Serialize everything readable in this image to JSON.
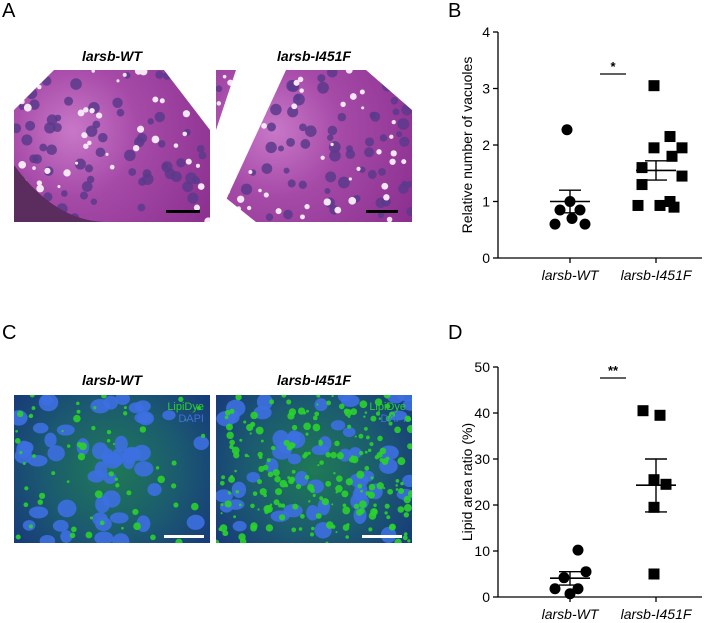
{
  "panels": {
    "a": {
      "letter": "A",
      "left_title": "larsb-WT",
      "right_title": "larsb-I451F"
    },
    "b": {
      "letter": "B"
    },
    "c": {
      "letter": "C",
      "left_title": "larsb-WT",
      "right_title": "larsb-I451F",
      "stain1": "LipiDye",
      "stain2": "DAPI"
    },
    "d": {
      "letter": "D"
    }
  },
  "colors": {
    "he_stain": "#a64aa8",
    "lipid_green": "#2bd12b",
    "dapi_blue": "#3d6fe0",
    "scalebar": "#000000",
    "scalebar_fluor": "#ffffff"
  },
  "chart_data": [
    {
      "type": "scatter",
      "panel": "B",
      "ylabel": "Relative number of vacuoles",
      "xlabel": "",
      "ylim": [
        0,
        4
      ],
      "yticks": [
        "0",
        "1",
        "2",
        "3",
        "4"
      ],
      "categories": [
        "larsb-WT",
        "larsb-I451F"
      ],
      "series": [
        {
          "marker": "circle",
          "values": [
            2.27,
            1.0,
            0.85,
            0.85,
            0.6,
            0.6,
            0.7
          ],
          "mean": 1.0,
          "sem": [
            0.8,
            1.2
          ]
        },
        {
          "marker": "square",
          "values": [
            3.05,
            2.15,
            1.95,
            1.95,
            1.8,
            1.6,
            1.45,
            1.3,
            1.0,
            0.93,
            0.93,
            0.9
          ],
          "mean": 1.55,
          "sem": [
            1.38,
            1.72
          ]
        }
      ],
      "significance": "*"
    },
    {
      "type": "scatter",
      "panel": "D",
      "ylabel": "Lipid area ratio (%)",
      "xlabel": "",
      "ylim": [
        0,
        50
      ],
      "yticks": [
        "0",
        "10",
        "20",
        "30",
        "40",
        "50"
      ],
      "categories": [
        "larsb-WT",
        "larsb-I451F"
      ],
      "series": [
        {
          "marker": "circle",
          "values": [
            10.2,
            5.5,
            4.2,
            1.8,
            0.7,
            1.8
          ],
          "mean": 4.1,
          "sem": [
            2.6,
            5.5
          ]
        },
        {
          "marker": "square",
          "values": [
            40.5,
            39.5,
            25.5,
            24.5,
            19.5,
            5.0
          ],
          "mean": 24.3,
          "sem": [
            18.5,
            30.0
          ]
        }
      ],
      "significance": "**"
    }
  ]
}
